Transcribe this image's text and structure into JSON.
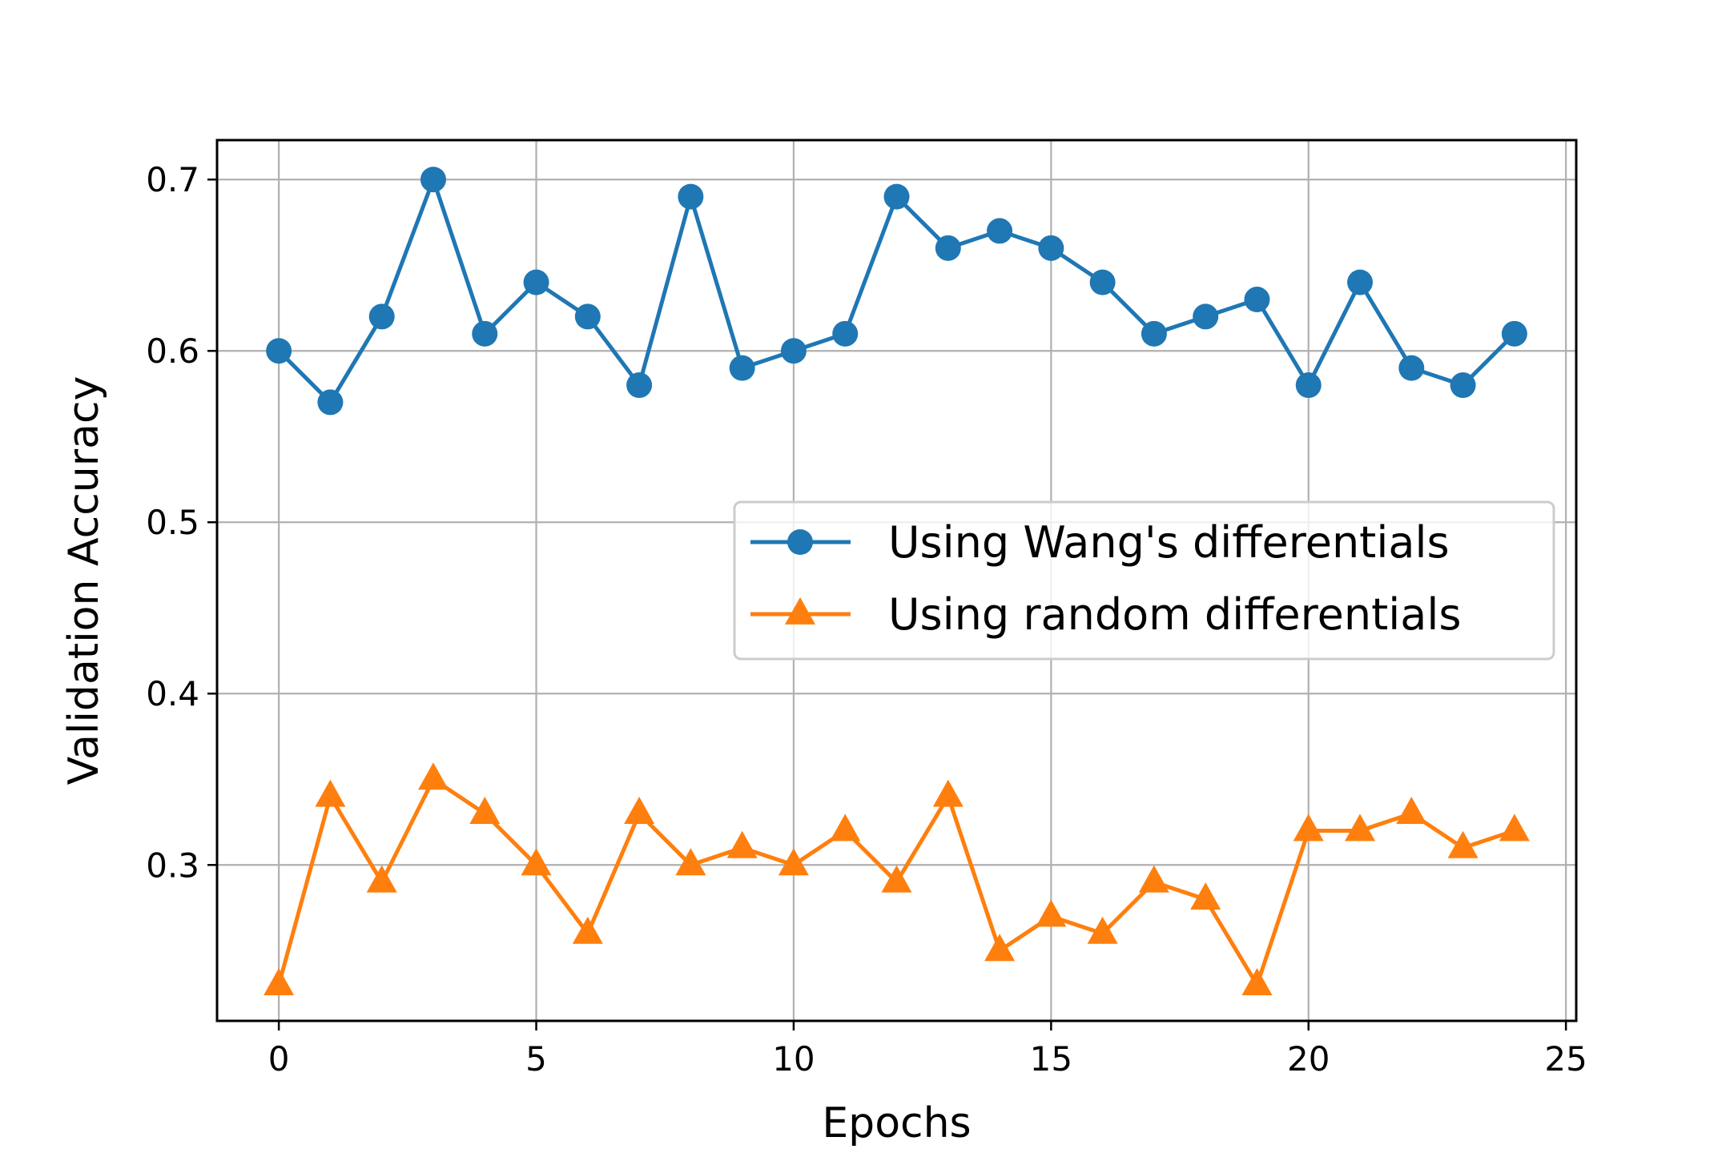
{
  "chart_data": {
    "type": "line",
    "title": "",
    "xlabel": "Epochs",
    "ylabel": "Validation Accuracy",
    "xlim": [
      -1.2,
      25.2
    ],
    "ylim": [
      0.209,
      0.723
    ],
    "xticks": [
      0,
      5,
      10,
      15,
      20,
      25
    ],
    "xtick_labels": [
      "0",
      "5",
      "10",
      "15",
      "20",
      "25"
    ],
    "yticks": [
      0.3,
      0.4,
      0.5,
      0.6,
      0.7
    ],
    "ytick_labels": [
      "0.3",
      "0.4",
      "0.5",
      "0.6",
      "0.7"
    ],
    "grid": true,
    "legend_position": "center-right",
    "x": [
      0,
      1,
      2,
      3,
      4,
      5,
      6,
      7,
      8,
      9,
      10,
      11,
      12,
      13,
      14,
      15,
      16,
      17,
      18,
      19,
      20,
      21,
      22,
      23,
      24
    ],
    "series": [
      {
        "name": "Using Wang's differentials",
        "color": "#1f77b4",
        "marker": "circle",
        "values": [
          0.6,
          0.57,
          0.62,
          0.7,
          0.61,
          0.64,
          0.62,
          0.58,
          0.69,
          0.59,
          0.6,
          0.61,
          0.69,
          0.66,
          0.67,
          0.66,
          0.64,
          0.61,
          0.62,
          0.63,
          0.58,
          0.64,
          0.59,
          0.58,
          0.61
        ]
      },
      {
        "name": "Using random differentials",
        "color": "#ff7f0e",
        "marker": "triangle",
        "values": [
          0.23,
          0.34,
          0.29,
          0.35,
          0.33,
          0.3,
          0.26,
          0.33,
          0.3,
          0.31,
          0.3,
          0.32,
          0.29,
          0.34,
          0.25,
          0.27,
          0.26,
          0.29,
          0.28,
          0.23,
          0.32,
          0.32,
          0.33,
          0.31,
          0.32
        ]
      }
    ]
  }
}
